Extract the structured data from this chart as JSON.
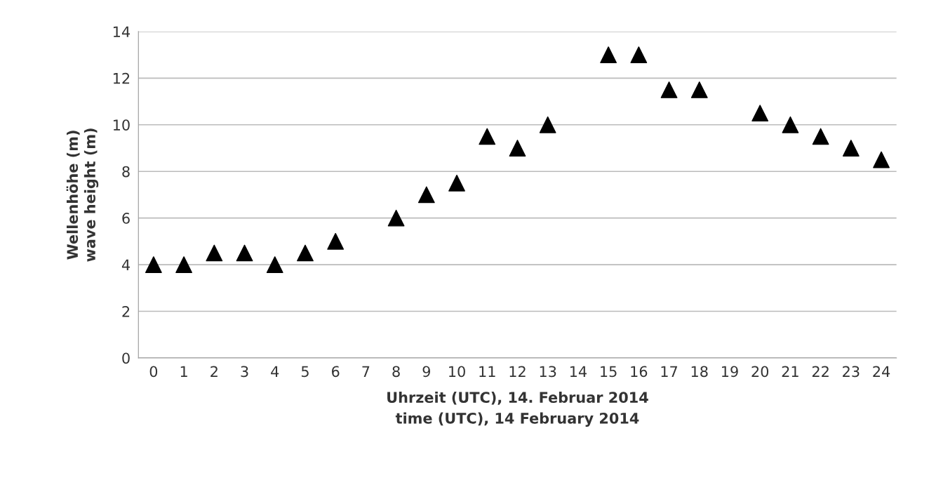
{
  "chart_data": {
    "type": "scatter",
    "xlabel": "Uhrzeit (UTC), 14. Februar 2014\ntime (UTC), 14 February 2014",
    "ylabel": "Wellenhöhe (m)\nwave height (m)",
    "categories": [
      "0",
      "1",
      "2",
      "3",
      "4",
      "5",
      "6",
      "7",
      "8",
      "9",
      "10",
      "11",
      "12",
      "13",
      "14",
      "15",
      "16",
      "17",
      "18",
      "19",
      "20",
      "21",
      "22",
      "23",
      "24"
    ],
    "series": [
      {
        "color": "#000000",
        "values": [
          4,
          4,
          4.5,
          4.5,
          4,
          4.5,
          5,
          null,
          6,
          7,
          7.5,
          9.5,
          9,
          10,
          null,
          13,
          13,
          11.5,
          11.5,
          null,
          10.5,
          10,
          9.5,
          9,
          8.5
        ]
      }
    ],
    "ylim": [
      0,
      14
    ],
    "yticks": [
      0,
      2,
      4,
      6,
      8,
      10,
      12,
      14
    ],
    "grid": "y",
    "marker": "triangle"
  }
}
